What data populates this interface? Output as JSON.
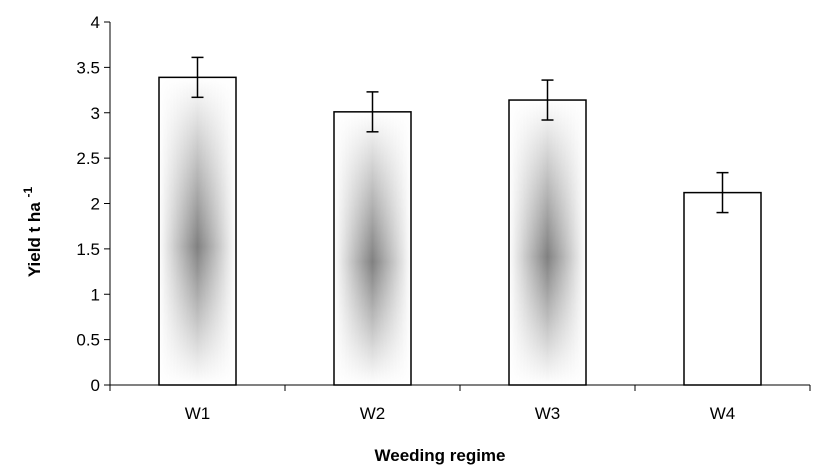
{
  "chart_data": {
    "type": "bar",
    "categories": [
      "W1",
      "W2",
      "W3",
      "W4"
    ],
    "values": [
      3.39,
      3.01,
      3.14,
      2.12
    ],
    "errors": [
      0.22,
      0.22,
      0.22,
      0.22
    ],
    "xlabel": "Weeding regime",
    "ylabel": {
      "main": "Yield  t  ha",
      "superscript": "-1"
    },
    "ylim": [
      0,
      4
    ],
    "yticks": [
      "0",
      "0.5",
      "1",
      "1.5",
      "2",
      "2.5",
      "3",
      "3.5",
      "4"
    ],
    "grid": false,
    "legend": "none",
    "bar_fill_gradient": [
      true,
      true,
      true,
      false
    ],
    "colors": {
      "bar_edge": "#000000",
      "bar_fill": "#ffffff",
      "bar_shade": "#7a7a7a",
      "axis": "#000000"
    }
  }
}
